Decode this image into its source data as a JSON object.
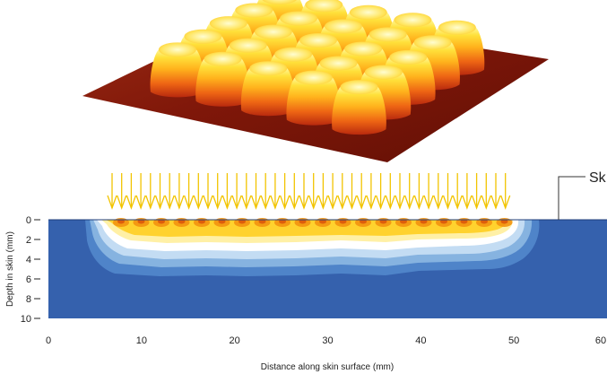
{
  "figure": {
    "callout": "Sk"
  },
  "chart_data": {
    "type": "heatmap",
    "xlabel": "Distance along skin surface (mm)",
    "ylabel": "Depth in skin (mm)",
    "xlim": [
      0,
      60
    ],
    "ylim": [
      0,
      10
    ],
    "x_ticks": [
      "0",
      "10",
      "20",
      "30",
      "40",
      "50",
      "60"
    ],
    "y_ticks": [
      "0",
      "2",
      "4",
      "6",
      "8",
      "10"
    ],
    "colors": {
      "background": "#3561ad",
      "bands": [
        "#4f84c9",
        "#86b3e0",
        "#c3dcf3",
        "#ffffff",
        "#fff0a6",
        "#ffd22e",
        "#f3920f",
        "#d9520b"
      ],
      "arrows": "#f2c400",
      "surface": "#8b1a0d"
    }
  }
}
